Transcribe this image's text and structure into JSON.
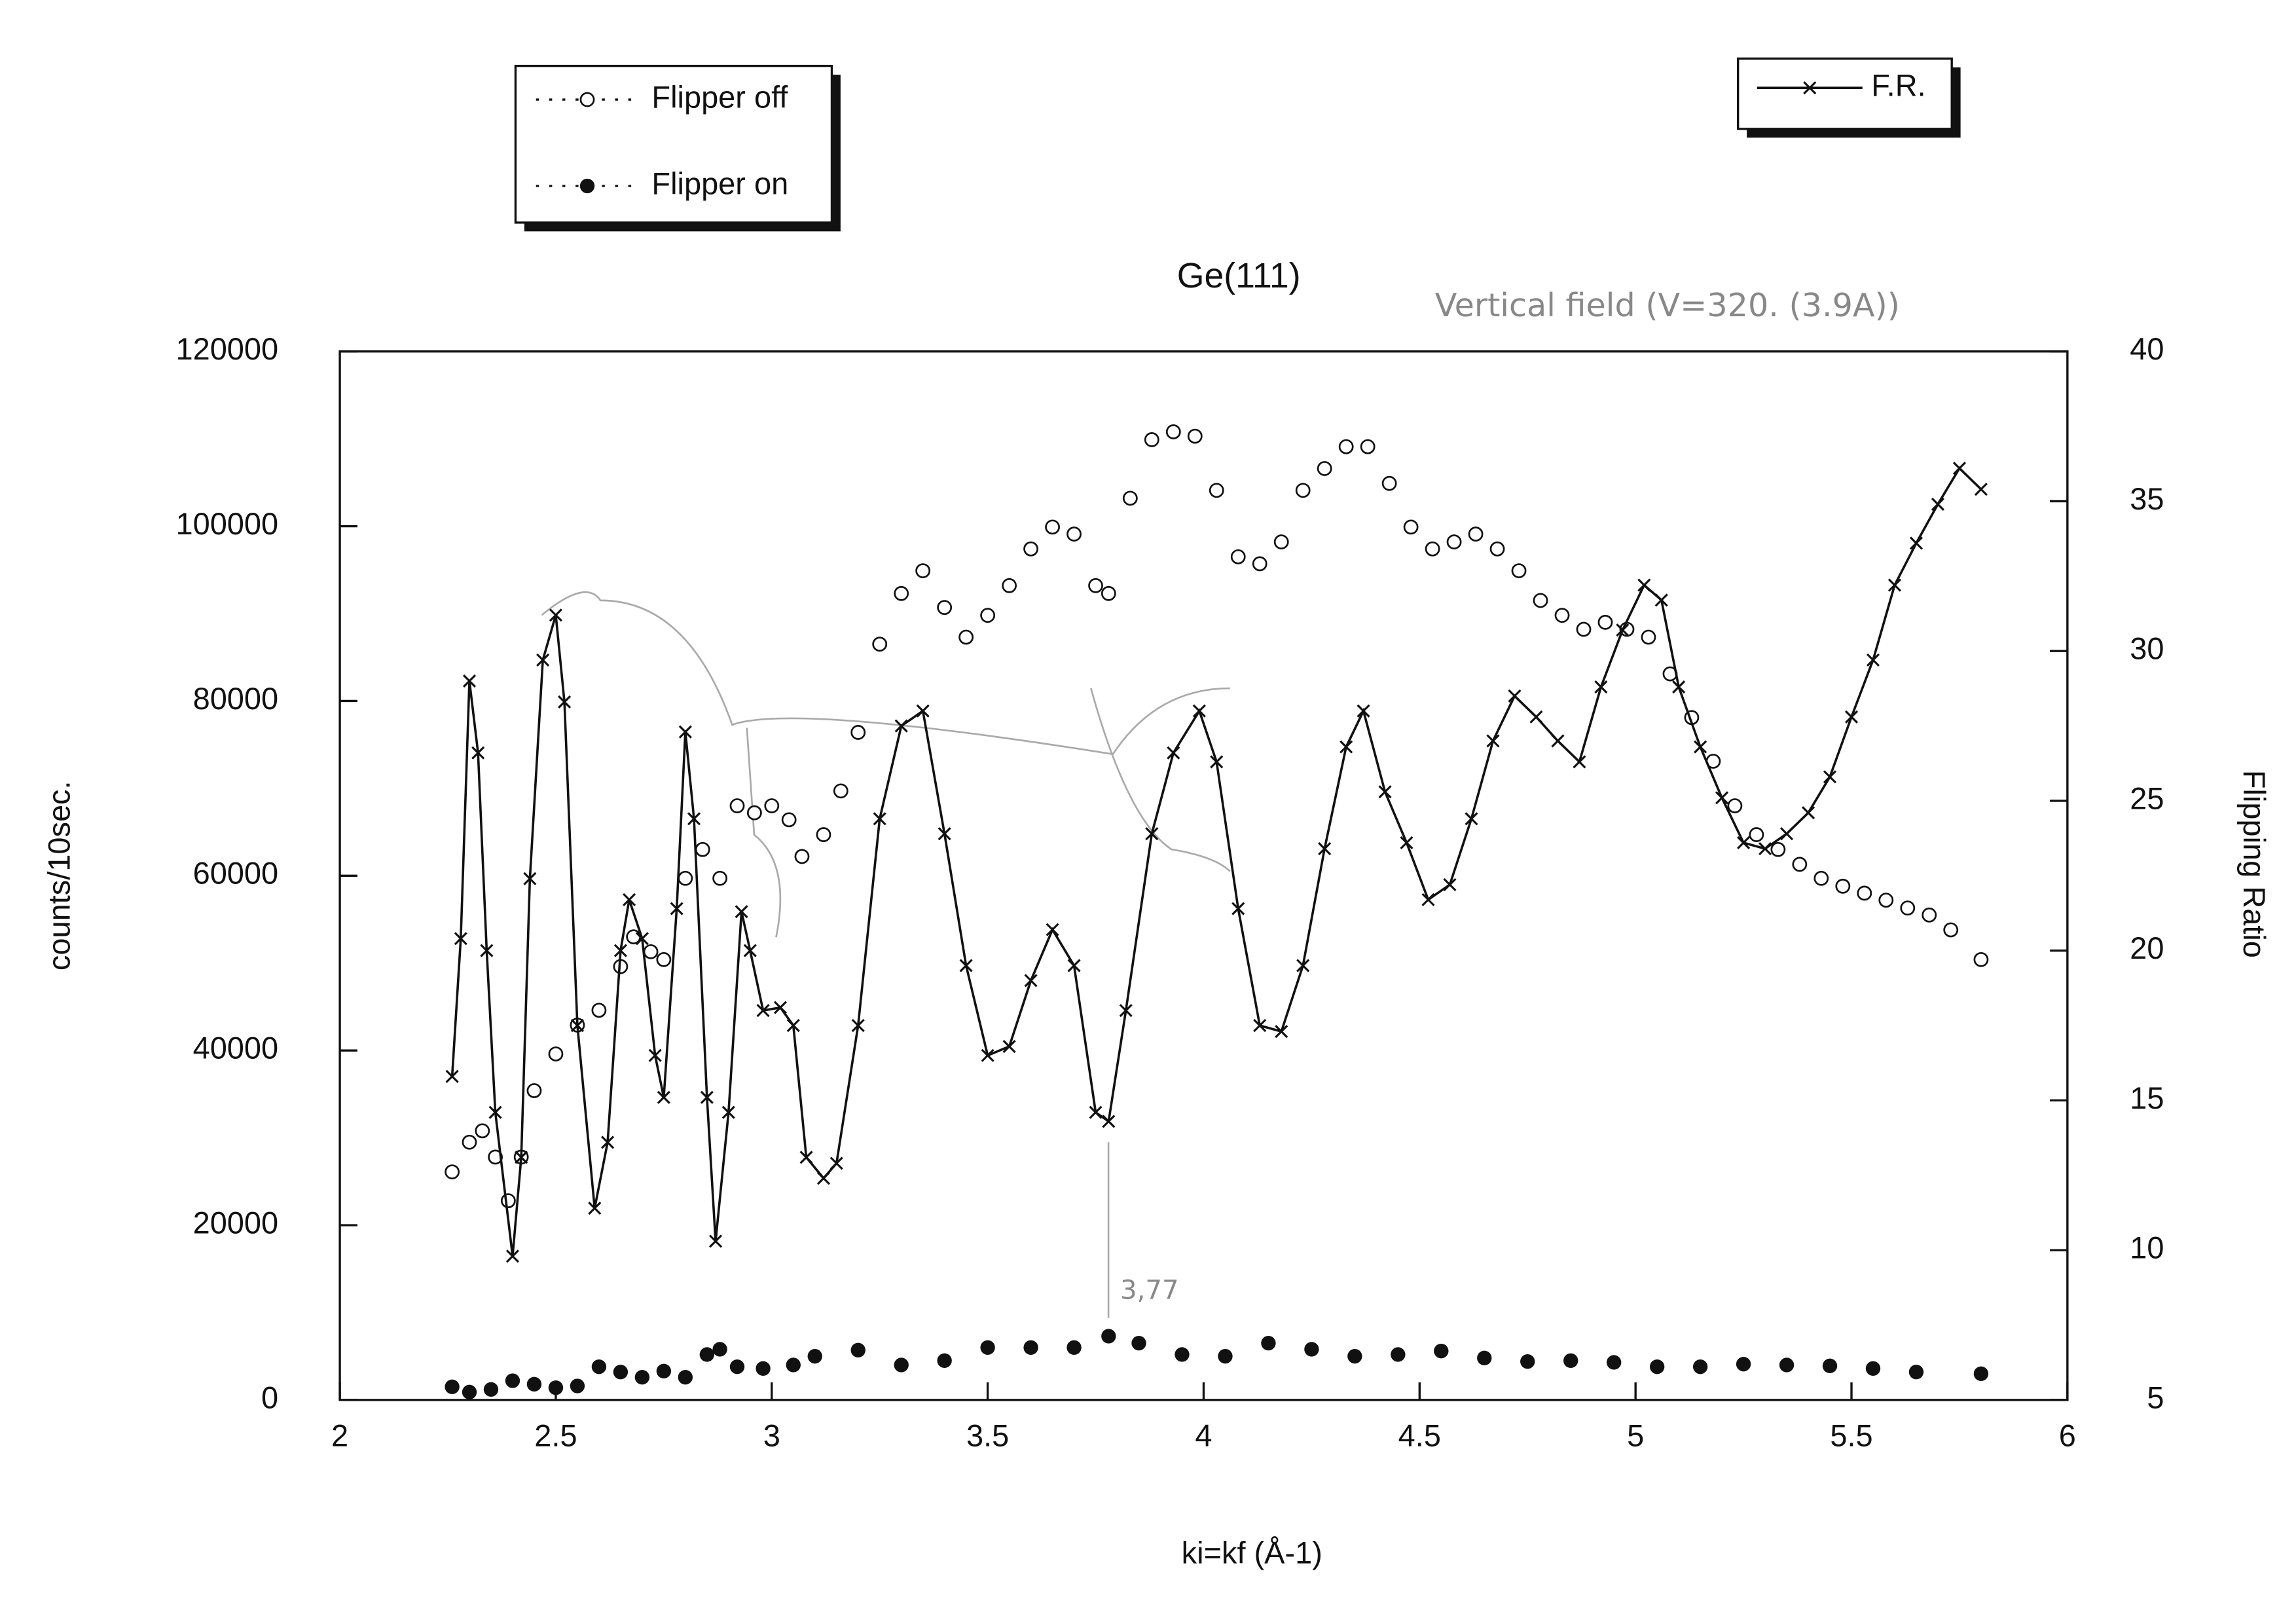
{
  "chart_data": {
    "type": "scatter",
    "title": "Ge(111)",
    "x_label": "ki=kf (Å-1)",
    "y_label": "counts/10sec.",
    "y2_label": "Flipping Ratio",
    "xlim": [
      2,
      6
    ],
    "xticks": [
      2,
      2.5,
      3,
      3.5,
      4,
      4.5,
      5,
      5.5,
      6
    ],
    "ylim": [
      0,
      120000
    ],
    "yticks": [
      0,
      20000,
      40000,
      60000,
      80000,
      100000,
      120000
    ],
    "y2lim": [
      5,
      40
    ],
    "y2ticks": [
      5,
      10,
      15,
      20,
      25,
      30,
      35,
      40
    ],
    "grid": false,
    "annotations": [
      "Vertical field (V=320. (3.9A))",
      "3,77"
    ],
    "series": [
      {
        "name": "Flipper off",
        "color": "#111111",
        "marker": "open-circle",
        "x": [
          2.26,
          2.3,
          2.33,
          2.36,
          2.39,
          2.42,
          2.45,
          2.5,
          2.55,
          2.6,
          2.65,
          2.68,
          2.72,
          2.75,
          2.8,
          2.84,
          2.88,
          2.92,
          2.96,
          3.0,
          3.04,
          3.07,
          3.12,
          3.16,
          3.2,
          3.25,
          3.3,
          3.35,
          3.4,
          3.45,
          3.5,
          3.55,
          3.6,
          3.65,
          3.7,
          3.75,
          3.78,
          3.83,
          3.88,
          3.93,
          3.98,
          4.03,
          4.08,
          4.13,
          4.18,
          4.23,
          4.28,
          4.33,
          4.38,
          4.43,
          4.48,
          4.53,
          4.58,
          4.63,
          4.68,
          4.73,
          4.78,
          4.83,
          4.88,
          4.93,
          4.98,
          5.03,
          5.08,
          5.13,
          5.18,
          5.23,
          5.28,
          5.33,
          5.38,
          5.43,
          5.48,
          5.53,
          5.58,
          5.63,
          5.68,
          5.73,
          5.8
        ],
        "values": [
          26100,
          29500,
          30800,
          27800,
          22800,
          27800,
          35400,
          39600,
          42900,
          44600,
          49600,
          53000,
          51300,
          50400,
          59700,
          63000,
          59700,
          68000,
          67200,
          68000,
          66400,
          62200,
          64700,
          69700,
          76400,
          86500,
          92300,
          94900,
          90700,
          87300,
          89800,
          93200,
          97400,
          99900,
          99100,
          93200,
          92300,
          103200,
          109900,
          110800,
          110300,
          104100,
          96500,
          95700,
          98200,
          104100,
          106600,
          109100,
          109100,
          104900,
          99900,
          97400,
          98200,
          99100,
          97400,
          94900,
          91500,
          89800,
          88200,
          89000,
          88200,
          87300,
          83100,
          78100,
          73100,
          68000,
          64700,
          63000,
          61300,
          59700,
          58800,
          58000,
          57200,
          56300,
          55500,
          53800,
          50400
        ]
      },
      {
        "name": "Flipper on",
        "color": "#111111",
        "marker": "filled-circle",
        "x": [
          2.26,
          2.3,
          2.35,
          2.4,
          2.45,
          2.5,
          2.55,
          2.6,
          2.65,
          2.7,
          2.75,
          2.8,
          2.85,
          2.88,
          2.92,
          2.98,
          3.05,
          3.1,
          3.2,
          3.3,
          3.4,
          3.5,
          3.6,
          3.7,
          3.78,
          3.85,
          3.95,
          4.05,
          4.15,
          4.25,
          4.35,
          4.45,
          4.55,
          4.65,
          4.75,
          4.85,
          4.95,
          5.05,
          5.15,
          5.25,
          5.35,
          5.45,
          5.55,
          5.65,
          5.8
        ],
        "values": [
          1500,
          900,
          1200,
          2200,
          1800,
          1400,
          1600,
          3800,
          3200,
          2600,
          3300,
          2600,
          5200,
          5800,
          3800,
          3600,
          4000,
          5000,
          5700,
          4000,
          4500,
          6000,
          6000,
          6000,
          7300,
          6500,
          5200,
          5000,
          6500,
          5800,
          5000,
          5200,
          5600,
          4800,
          4400,
          4500,
          4300,
          3800,
          3800,
          4100,
          4000,
          3900,
          3600,
          3200,
          3000
        ]
      },
      {
        "name": "F.R.",
        "color": "#111111",
        "marker": "cross",
        "axis": "y2",
        "line": true,
        "x": [
          2.26,
          2.28,
          2.3,
          2.32,
          2.34,
          2.36,
          2.4,
          2.42,
          2.44,
          2.47,
          2.5,
          2.52,
          2.55,
          2.59,
          2.62,
          2.65,
          2.67,
          2.7,
          2.73,
          2.75,
          2.78,
          2.8,
          2.82,
          2.85,
          2.87,
          2.9,
          2.93,
          2.95,
          2.98,
          3.02,
          3.05,
          3.08,
          3.12,
          3.15,
          3.2,
          3.25,
          3.3,
          3.35,
          3.4,
          3.45,
          3.5,
          3.55,
          3.6,
          3.65,
          3.7,
          3.75,
          3.78,
          3.82,
          3.88,
          3.93,
          3.99,
          4.03,
          4.08,
          4.13,
          4.18,
          4.23,
          4.28,
          4.33,
          4.37,
          4.42,
          4.47,
          4.52,
          4.57,
          4.62,
          4.67,
          4.72,
          4.77,
          4.82,
          4.87,
          4.92,
          4.97,
          5.02,
          5.06,
          5.1,
          5.15,
          5.2,
          5.25,
          5.3,
          5.35,
          5.4,
          5.45,
          5.5,
          5.55,
          5.6,
          5.65,
          5.7,
          5.75,
          5.8
        ],
        "values": [
          15.8,
          20.4,
          29.0,
          26.6,
          20.0,
          14.6,
          9.8,
          13.1,
          22.4,
          29.7,
          31.2,
          28.3,
          17.5,
          11.4,
          13.6,
          20.0,
          21.7,
          20.4,
          16.5,
          15.1,
          21.4,
          27.3,
          24.4,
          15.1,
          10.3,
          14.6,
          21.3,
          20.0,
          18.0,
          18.1,
          17.5,
          13.1,
          12.4,
          12.9,
          17.5,
          24.4,
          27.5,
          28.0,
          23.9,
          19.5,
          16.5,
          16.8,
          19.0,
          20.7,
          19.5,
          14.6,
          14.3,
          18.0,
          23.9,
          26.6,
          28.0,
          26.3,
          21.4,
          17.5,
          17.3,
          19.5,
          23.4,
          26.8,
          28.0,
          25.3,
          23.6,
          21.7,
          22.2,
          24.4,
          27.0,
          28.5,
          27.8,
          27.0,
          26.3,
          28.8,
          30.7,
          32.2,
          31.7,
          28.8,
          26.8,
          25.1,
          23.6,
          23.4,
          23.9,
          24.6,
          25.8,
          27.8,
          29.7,
          32.2,
          33.6,
          34.9,
          36.1,
          35.4
        ]
      }
    ]
  }
}
